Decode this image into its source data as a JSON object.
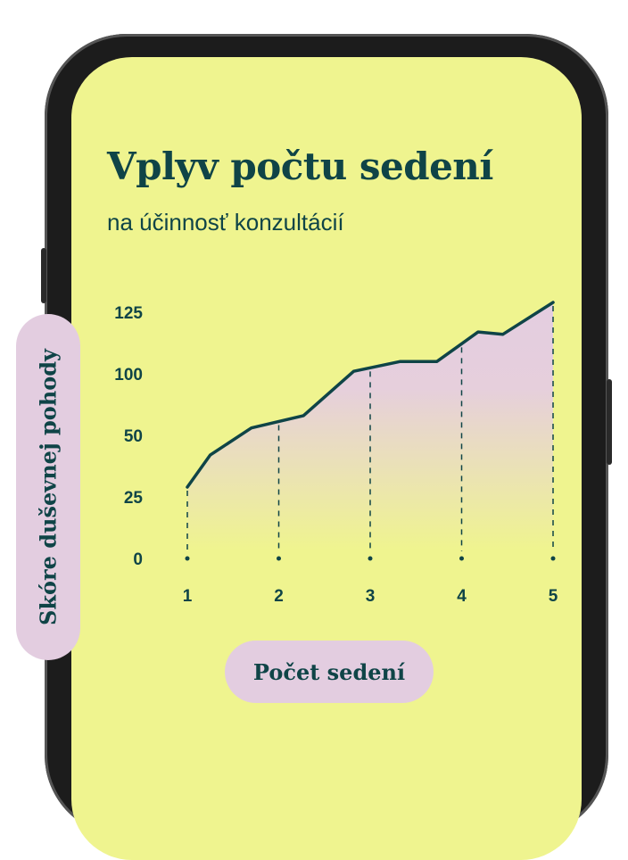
{
  "header": {
    "title": "Vplyv počtu sedení",
    "subtitle": "na účinnosť konzultácií"
  },
  "colors": {
    "background": "#eff48f",
    "accent": "#0f4447",
    "fill": "#e3cde0",
    "frame": "#1c1c1c"
  },
  "chart_data": {
    "type": "area",
    "xlabel": "Počet sedení",
    "ylabel": "Skóre duševnej pohody",
    "x_ticks": [
      1,
      2,
      3,
      4,
      5
    ],
    "y_ticks": [
      0,
      25,
      50,
      100,
      125
    ],
    "xlim": [
      1,
      5
    ],
    "grid": "dashed vertical lines at x ticks",
    "series": [
      {
        "x": [
          1,
          1.25,
          1.7,
          2.27,
          2.82,
          3.33,
          3.73,
          4.18,
          4.45,
          5
        ],
        "y": [
          29,
          42,
          56,
          66,
          101,
          105,
          105,
          117,
          116,
          129
        ]
      }
    ]
  }
}
